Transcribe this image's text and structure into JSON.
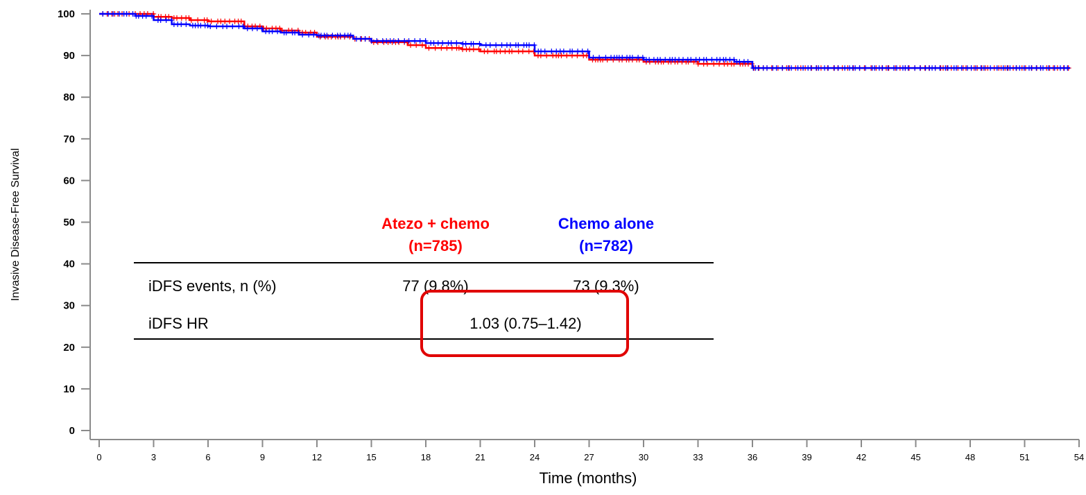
{
  "chart_data": {
    "type": "line",
    "xlabel": "Time (months)",
    "ylabel": "Invasive Disease-Free Survival",
    "xlim": [
      0,
      54
    ],
    "ylim": [
      0,
      100
    ],
    "x_ticks": [
      "0",
      "3",
      "6",
      "9",
      "12",
      "15",
      "18",
      "21",
      "24",
      "27",
      "30",
      "33",
      "36",
      "39",
      "42",
      "45",
      "48",
      "51",
      "54"
    ],
    "y_ticks": [
      "0",
      "10",
      "20",
      "30",
      "40",
      "50",
      "60",
      "70",
      "80",
      "90",
      "100"
    ],
    "grid": false,
    "colors": {
      "atezo": "#ff0000",
      "chemo": "#0000ff",
      "highlight": "#e00000"
    },
    "series": [
      {
        "color": "#ff0000",
        "x": [
          0,
          2,
          3,
          4,
          5,
          6,
          8,
          9,
          10,
          11,
          12,
          14,
          15,
          17,
          18,
          20,
          21,
          24,
          27,
          30,
          33,
          36,
          39,
          42,
          45,
          48,
          51,
          53.5
        ],
        "y": [
          100,
          100,
          99.3,
          99,
          98.5,
          98.2,
          97,
          96.5,
          96,
          95.5,
          94.5,
          94,
          93.2,
          92.5,
          91.8,
          91.5,
          91,
          90,
          89,
          88.5,
          88,
          87,
          87,
          87,
          87,
          87,
          87,
          87
        ]
      },
      {
        "color": "#0000ff",
        "x": [
          0,
          2,
          3,
          4,
          5,
          6,
          8,
          9,
          10,
          11,
          12,
          14,
          15,
          18,
          20,
          21,
          24,
          27,
          30,
          33,
          35,
          36,
          39,
          42,
          45,
          48,
          51,
          53.5
        ],
        "y": [
          100,
          99.5,
          98.5,
          97.5,
          97.2,
          97,
          96.5,
          95.8,
          95.5,
          95,
          94.8,
          94,
          93.5,
          93,
          92.8,
          92.5,
          91,
          89.5,
          89,
          89,
          88.5,
          87,
          87,
          87,
          87,
          87,
          87,
          87
        ]
      }
    ]
  },
  "table": {
    "headers": [
      {
        "line1": "Atezo + chemo",
        "line2": "(n=785)",
        "color": "#ff0000"
      },
      {
        "line1": "Chemo alone",
        "line2": "(n=782)",
        "color": "#0000ff"
      }
    ],
    "rows": [
      {
        "label": "iDFS events, n (%)",
        "values": [
          "77 (9.8%)",
          "73 (9.3%)"
        ]
      },
      {
        "label": "iDFS HR",
        "value": "1.03 (0.75–1.42)"
      }
    ]
  }
}
